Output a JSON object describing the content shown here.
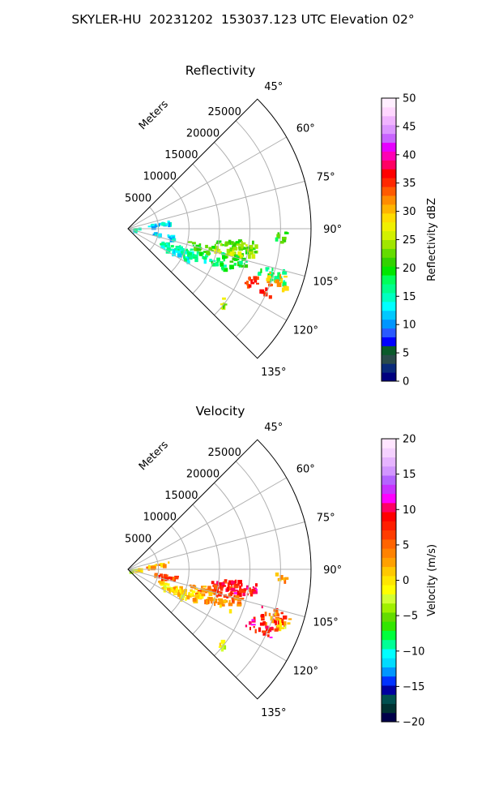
{
  "figure": {
    "suptitle": "SKYLER-HU  20231202  153037.123 UTC Elevation 02°"
  },
  "colors": {
    "reflectivity_colormap": [
      "#00007f",
      "#0a2a7a",
      "#2a4a4a",
      "#0a5a2a",
      "#0000ff",
      "#2a5aff",
      "#0096ff",
      "#00c8ff",
      "#00ffff",
      "#00ffc0",
      "#00ff8c",
      "#00ff5a",
      "#00e600",
      "#32d200",
      "#64dc00",
      "#a0e600",
      "#d2f000",
      "#f0f000",
      "#ffdc00",
      "#ffb400",
      "#ff8c00",
      "#ff5a00",
      "#ff2800",
      "#ff0000",
      "#ff0064",
      "#ff00b4",
      "#e600ff",
      "#c864ff",
      "#dc96ff",
      "#f0b4ff",
      "#ffd7ff",
      "#ffefff"
    ],
    "velocity_colormap": [
      "#00004a",
      "#003232",
      "#005050",
      "#0000a0",
      "#0032ff",
      "#0096ff",
      "#00dcff",
      "#00ffff",
      "#00ff96",
      "#00ff3c",
      "#32e600",
      "#64dc00",
      "#a0f000",
      "#d2ff32",
      "#ffff00",
      "#ffe600",
      "#ffc800",
      "#ffa000",
      "#ff8200",
      "#ff6400",
      "#ff3c00",
      "#ff1e00",
      "#ff0000",
      "#ff0064",
      "#ff00ff",
      "#c832ff",
      "#b464ff",
      "#d296ff",
      "#e6b4ff",
      "#f5d2ff",
      "#ffe6ff"
    ]
  },
  "chart_data": [
    {
      "type": "heatmap",
      "title": "Reflectivity",
      "projection": "polar sector",
      "theta_ticks": [
        "45°",
        "60°",
        "75°",
        "90°",
        "105°",
        "120°",
        "135°"
      ],
      "theta_range": [
        45,
        135
      ],
      "radial_label": "Meters",
      "r_ticks": [
        "5000",
        "10000",
        "15000",
        "20000",
        "25000"
      ],
      "r_range": [
        0,
        30000
      ],
      "grid": true,
      "colorbar": {
        "label": "Reflectivity dBZ",
        "range": [
          0,
          50
        ],
        "ticks": [
          "0",
          "5",
          "10",
          "15",
          "20",
          "25",
          "30",
          "35",
          "40",
          "45",
          "50"
        ]
      },
      "echo_features": [
        {
          "az": 98,
          "r": [
            13500,
            21000
          ],
          "value": 22
        },
        {
          "az": 100,
          "r": [
            17000,
            21000
          ],
          "value": 23
        },
        {
          "az": 102,
          "r": [
            14000,
            19000
          ],
          "value": 25
        },
        {
          "az": 104,
          "r": [
            10000,
            14000
          ],
          "value": 21
        },
        {
          "az": 106,
          "r": [
            15000,
            20000
          ],
          "value": 19
        },
        {
          "az": 107,
          "r": [
            22000,
            27000
          ],
          "value": 18
        },
        {
          "az": 109,
          "r": [
            24000,
            27500
          ],
          "value": 30
        },
        {
          "az": 110,
          "r": [
            8000,
            18000
          ],
          "value": 17
        },
        {
          "az": 113,
          "r": [
            21000,
            26000
          ],
          "value": 34
        },
        {
          "az": 112,
          "r": [
            5000,
            12000
          ],
          "value": 16
        },
        {
          "az": 116,
          "r": [
            6000,
            11000
          ],
          "value": 15
        },
        {
          "az": 100,
          "r": [
            4000,
            8000
          ],
          "value": 13
        },
        {
          "az": 80,
          "r": [
            3000,
            7000
          ],
          "value": 12
        },
        {
          "az": 85,
          "r": [
            200,
            2000
          ],
          "value": 14
        },
        {
          "az": 93,
          "r": [
            24000,
            26000
          ],
          "value": 20
        },
        {
          "az": 128,
          "r": [
            19000,
            20000
          ],
          "value": 24
        }
      ]
    },
    {
      "type": "heatmap",
      "title": "Velocity",
      "projection": "polar sector",
      "theta_ticks": [
        "45°",
        "60°",
        "75°",
        "90°",
        "105°",
        "120°",
        "135°"
      ],
      "theta_range": [
        45,
        135
      ],
      "radial_label": "Meters",
      "r_ticks": [
        "5000",
        "10000",
        "15000",
        "20000",
        "25000"
      ],
      "r_range": [
        0,
        30000
      ],
      "grid": true,
      "colorbar": {
        "label": "Velocity (m/s)",
        "range": [
          -20,
          20
        ],
        "ticks": [
          "−20",
          "−15",
          "−10",
          "−5",
          "0",
          "5",
          "10",
          "15",
          "20"
        ]
      },
      "echo_features": [
        {
          "az": 98,
          "r": [
            13500,
            21000
          ],
          "value": 8
        },
        {
          "az": 100,
          "r": [
            17000,
            21000
          ],
          "value": 9
        },
        {
          "az": 102,
          "r": [
            14000,
            19000
          ],
          "value": 8
        },
        {
          "az": 104,
          "r": [
            10000,
            14000
          ],
          "value": 3
        },
        {
          "az": 106,
          "r": [
            15000,
            20000
          ],
          "value": 5
        },
        {
          "az": 107,
          "r": [
            22000,
            27000
          ],
          "value": 7
        },
        {
          "az": 109,
          "r": [
            24000,
            27500
          ],
          "value": 1
        },
        {
          "az": 110,
          "r": [
            8000,
            18000
          ],
          "value": 2
        },
        {
          "az": 113,
          "r": [
            21000,
            26000
          ],
          "value": 9
        },
        {
          "az": 112,
          "r": [
            5000,
            12000
          ],
          "value": 1
        },
        {
          "az": 116,
          "r": [
            6000,
            11000
          ],
          "value": 0
        },
        {
          "az": 100,
          "r": [
            4000,
            8000
          ],
          "value": 6
        },
        {
          "az": 80,
          "r": [
            3000,
            7000
          ],
          "value": 2
        },
        {
          "az": 85,
          "r": [
            200,
            2000
          ],
          "value": -1
        },
        {
          "az": 93,
          "r": [
            24000,
            26000
          ],
          "value": 3
        },
        {
          "az": 128,
          "r": [
            19000,
            20000
          ],
          "value": -2
        }
      ]
    }
  ]
}
